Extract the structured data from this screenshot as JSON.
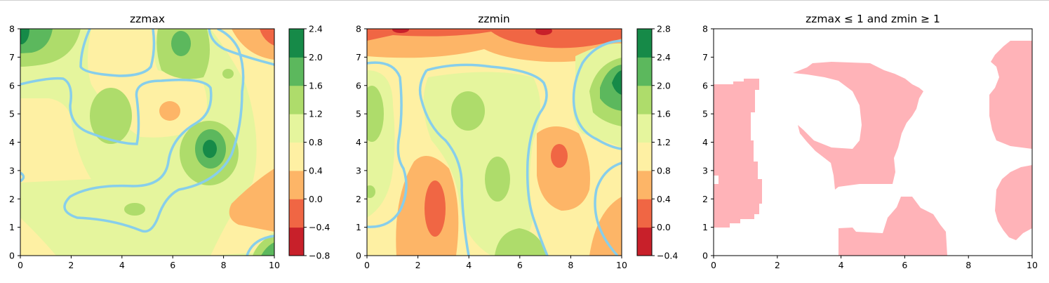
{
  "chart_data": [
    {
      "type": "heatmap",
      "title": "zzmax",
      "xlim": [
        0,
        10
      ],
      "ylim": [
        0,
        8
      ],
      "x_ticks": [
        "0",
        "2",
        "4",
        "6",
        "8",
        "10"
      ],
      "y_ticks": [
        "0",
        "1",
        "2",
        "3",
        "4",
        "5",
        "6",
        "7",
        "8"
      ],
      "colorbar_levels": [
        -0.8,
        -0.4,
        0.0,
        0.4,
        0.8,
        1.2,
        1.6,
        2.0,
        2.4
      ],
      "colorbar_ticks": [
        "−0.8",
        "−0.4",
        "0.0",
        "0.4",
        "0.8",
        "1.2",
        "1.6",
        "2.0",
        "2.4"
      ],
      "colormap": [
        "#c8202a",
        "#f06644",
        "#fdb567",
        "#fef0a3",
        "#e5f59d",
        "#aedc6b",
        "#5cb85d",
        "#168a48"
      ],
      "contour_level": 1.0,
      "contour_color": "#87ceeb"
    },
    {
      "type": "heatmap",
      "title": "zzmin",
      "xlim": [
        0,
        10
      ],
      "ylim": [
        0,
        8
      ],
      "x_ticks": [
        "0",
        "2",
        "4",
        "6",
        "8",
        "10"
      ],
      "y_ticks": [
        "0",
        "1",
        "2",
        "3",
        "4",
        "5",
        "6",
        "7",
        "8"
      ],
      "colorbar_levels": [
        -0.4,
        0.0,
        0.4,
        0.8,
        1.2,
        1.6,
        2.0,
        2.4,
        2.8
      ],
      "colorbar_ticks": [
        "−0.4",
        "0.0",
        "0.4",
        "0.8",
        "1.2",
        "1.6",
        "2.0",
        "2.4",
        "2.8"
      ],
      "colormap": [
        "#c8202a",
        "#f06644",
        "#fdb567",
        "#fef0a3",
        "#e5f59d",
        "#aedc6b",
        "#5cb85d",
        "#168a48"
      ],
      "contour_level": 1.0,
      "contour_color": "#87ceeb"
    },
    {
      "type": "heatmap",
      "title": "zzmax ≤ 1 and zmin ≥ 1",
      "xlim": [
        0,
        10
      ],
      "ylim": [
        0,
        8
      ],
      "x_ticks": [
        "0",
        "2",
        "4",
        "6",
        "8",
        "10"
      ],
      "y_ticks": [
        "0",
        "1",
        "2",
        "3",
        "4",
        "5",
        "6",
        "7",
        "8"
      ],
      "fill_color": "#ffb3b8"
    }
  ]
}
